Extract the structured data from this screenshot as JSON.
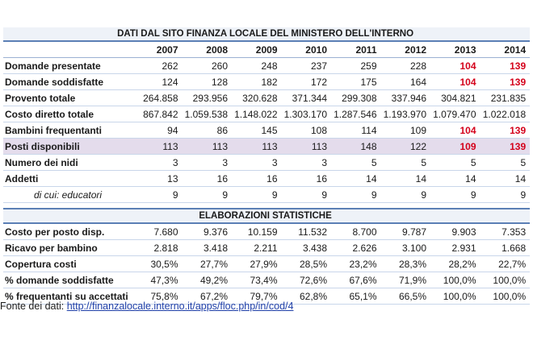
{
  "title": "DATI DAL SITO FINANZA LOCALE DEL MINISTERO DELL'INTERNO",
  "years": [
    "2007",
    "2008",
    "2009",
    "2010",
    "2011",
    "2012",
    "2013",
    "2014"
  ],
  "rows": [
    {
      "label": "Domande presentate",
      "values": [
        "262",
        "260",
        "248",
        "237",
        "259",
        "228",
        "104",
        "139"
      ],
      "red": [
        false,
        false,
        false,
        false,
        false,
        false,
        true,
        true
      ]
    },
    {
      "label": "Domande soddisfatte",
      "values": [
        "124",
        "128",
        "182",
        "172",
        "175",
        "164",
        "104",
        "139"
      ],
      "red": [
        false,
        false,
        false,
        false,
        false,
        false,
        true,
        true
      ]
    },
    {
      "label": "Provento totale",
      "values": [
        "264.858",
        "293.956",
        "320.628",
        "371.344",
        "299.308",
        "337.946",
        "304.821",
        "231.835"
      ],
      "red": [
        false,
        false,
        false,
        false,
        false,
        false,
        false,
        false
      ]
    },
    {
      "label": "Costo diretto totale",
      "values": [
        "867.842",
        "1.059.538",
        "1.148.022",
        "1.303.170",
        "1.287.546",
        "1.193.970",
        "1.079.470",
        "1.022.018"
      ],
      "red": [
        false,
        false,
        false,
        false,
        false,
        false,
        false,
        false
      ]
    },
    {
      "label": "Bambini frequentanti",
      "values": [
        "94",
        "86",
        "145",
        "108",
        "114",
        "109",
        "104",
        "139"
      ],
      "red": [
        false,
        false,
        false,
        false,
        false,
        false,
        true,
        true
      ]
    },
    {
      "label": "Posti disponibili",
      "values": [
        "113",
        "113",
        "113",
        "113",
        "148",
        "122",
        "109",
        "139"
      ],
      "red": [
        false,
        false,
        false,
        false,
        false,
        false,
        true,
        true
      ],
      "highlight": true
    },
    {
      "label": "Numero dei nidi",
      "values": [
        "3",
        "3",
        "3",
        "3",
        "5",
        "5",
        "5",
        "5"
      ],
      "red": [
        false,
        false,
        false,
        false,
        false,
        false,
        false,
        false
      ]
    },
    {
      "label": "Addetti",
      "values": [
        "13",
        "16",
        "16",
        "16",
        "14",
        "14",
        "14",
        "14"
      ],
      "red": [
        false,
        false,
        false,
        false,
        false,
        false,
        false,
        false
      ]
    },
    {
      "label": "di cui: educatori",
      "values": [
        "9",
        "9",
        "9",
        "9",
        "9",
        "9",
        "9",
        "9"
      ],
      "red": [
        false,
        false,
        false,
        false,
        false,
        false,
        false,
        false
      ],
      "sub": true
    }
  ],
  "section_title": "ELABORAZIONI STATISTICHE",
  "stats": [
    {
      "label": "Costo per posto disp.",
      "values": [
        "7.680",
        "9.376",
        "10.159",
        "11.532",
        "8.700",
        "9.787",
        "9.903",
        "7.353"
      ]
    },
    {
      "label": "Ricavo per bambino",
      "values": [
        "2.818",
        "3.418",
        "2.211",
        "3.438",
        "2.626",
        "3.100",
        "2.931",
        "1.668"
      ]
    },
    {
      "label": "Copertura costi",
      "values": [
        "30,5%",
        "27,7%",
        "27,9%",
        "28,5%",
        "23,2%",
        "28,3%",
        "28,2%",
        "22,7%"
      ]
    },
    {
      "label": "% domande soddisfatte",
      "values": [
        "47,3%",
        "49,2%",
        "73,4%",
        "72,6%",
        "67,6%",
        "71,9%",
        "100,0%",
        "100,0%"
      ]
    },
    {
      "label": "% frequentanti su accettati",
      "values": [
        "75,8%",
        "67,2%",
        "79,7%",
        "62,8%",
        "65,1%",
        "66,5%",
        "100,0%",
        "100,0%"
      ]
    }
  ],
  "source": {
    "prefix": "Fonte dei dati: ",
    "link_text": "http://finanzalocale.interno.it/apps/floc.php/in/cod/4"
  },
  "colors": {
    "accent": "#5b7fb5",
    "highlight": "#e4dcec",
    "red": "#d4001a",
    "link": "#1f3fa8"
  }
}
